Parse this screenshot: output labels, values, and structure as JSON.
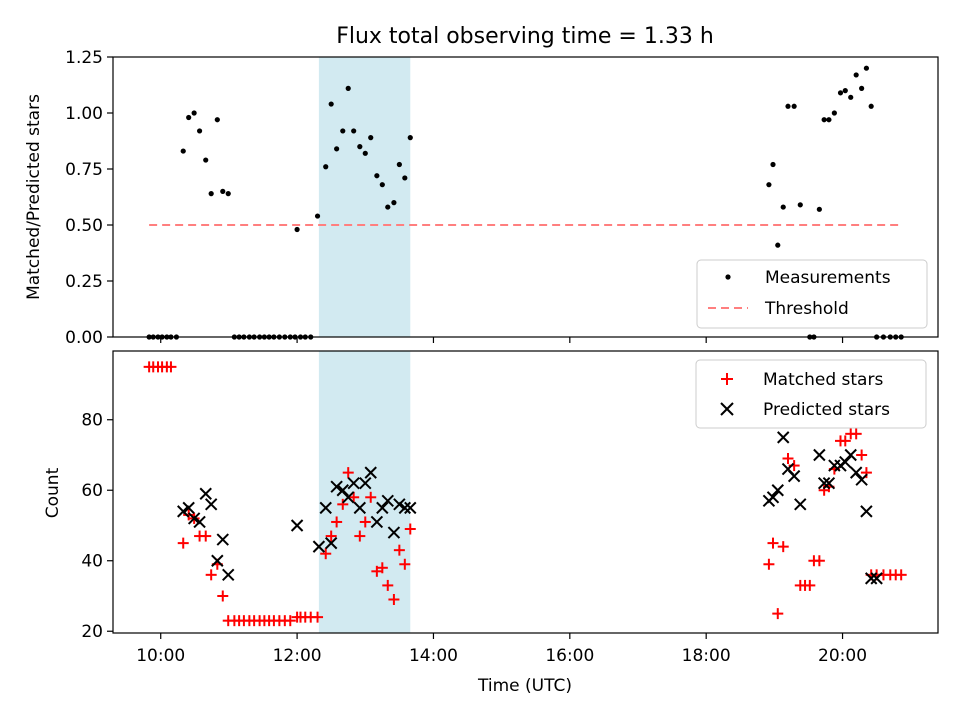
{
  "chart_data": {
    "title": "Flux total observing time = 1.33 h",
    "xlabel": "Time (UTC)",
    "x_unit": "hours UTC",
    "xlim": [
      9.3,
      21.4
    ],
    "x_ticks": [
      10,
      12,
      14,
      16,
      18,
      20
    ],
    "x_tick_labels": [
      "10:00",
      "12:00",
      "14:00",
      "16:00",
      "18:00",
      "20:00"
    ],
    "shaded_interval": {
      "x_start": 12.32,
      "x_end": 13.66,
      "color": "#add8e6"
    },
    "charts": [
      {
        "type": "scatter",
        "ylabel": "Matched/Predicted stars",
        "ylim": [
          0,
          1.25
        ],
        "y_ticks": [
          0,
          0.25,
          0.5,
          0.75,
          1.0,
          1.25
        ],
        "y_tick_labels": [
          "0.00",
          "0.25",
          "0.50",
          "0.75",
          "1.00",
          "1.25"
        ],
        "legend_position": "lower right",
        "series": [
          {
            "name": "Measurements",
            "marker": "dot",
            "color": "#000000",
            "x": [
              9.83,
              9.89,
              9.96,
              10.02,
              10.09,
              10.15,
              10.23,
              10.33,
              10.41,
              10.49,
              10.57,
              10.66,
              10.74,
              10.83,
              10.91,
              10.99,
              11.08,
              11.15,
              11.22,
              11.3,
              11.37,
              11.45,
              11.52,
              11.59,
              11.66,
              11.74,
              11.82,
              11.9,
              11.97,
              12.0,
              12.05,
              12.12,
              12.2,
              12.3,
              12.42,
              12.5,
              12.58,
              12.67,
              12.75,
              12.83,
              12.92,
              13.0,
              13.08,
              13.17,
              13.25,
              13.33,
              13.42,
              13.5,
              13.58,
              13.66,
              18.92,
              18.98,
              19.05,
              19.13,
              19.2,
              19.29,
              19.38,
              19.52,
              19.58,
              19.66,
              19.73,
              19.8,
              19.88,
              19.97,
              20.04,
              20.12,
              20.2,
              20.28,
              20.35,
              20.42,
              20.5,
              20.6,
              20.7,
              20.78,
              20.86
            ],
            "y": [
              0.0,
              0.0,
              0.0,
              0.0,
              0.0,
              0.0,
              0.0,
              0.83,
              0.98,
              1.0,
              0.92,
              0.79,
              0.64,
              0.97,
              0.65,
              0.64,
              0.0,
              0.0,
              0.0,
              0.0,
              0.0,
              0.0,
              0.0,
              0.0,
              0.0,
              0.0,
              0.0,
              0.0,
              0.0,
              0.48,
              0.0,
              0.0,
              0.0,
              0.54,
              0.76,
              1.04,
              0.84,
              0.92,
              1.11,
              0.92,
              0.85,
              0.82,
              0.89,
              0.72,
              0.68,
              0.58,
              0.6,
              0.77,
              0.71,
              0.89,
              0.68,
              0.77,
              0.41,
              0.58,
              1.03,
              1.03,
              0.59,
              0.0,
              0.0,
              0.57,
              0.97,
              0.97,
              1.0,
              1.09,
              1.1,
              1.07,
              1.17,
              1.11,
              1.2,
              1.03,
              0.0,
              0.0,
              0.0,
              0.0,
              0.0
            ]
          },
          {
            "name": "Threshold",
            "type": "line",
            "style": "dashed",
            "color": "#ff7f7f",
            "x": [
              9.83,
              20.86
            ],
            "y": [
              0.5,
              0.5
            ]
          }
        ]
      },
      {
        "type": "scatter",
        "ylabel": "Count",
        "ylim": [
          19.5,
          99.5
        ],
        "y_ticks": [
          20,
          40,
          60,
          80
        ],
        "y_tick_labels": [
          "20",
          "40",
          "60",
          "80"
        ],
        "legend_position": "upper right",
        "series": [
          {
            "name": "Matched stars",
            "marker": "plus",
            "color": "#ff0000",
            "x": [
              9.83,
              9.89,
              9.96,
              10.02,
              10.09,
              10.15,
              10.33,
              10.41,
              10.49,
              10.57,
              10.66,
              10.74,
              10.83,
              10.91,
              10.99,
              11.08,
              11.15,
              11.22,
              11.3,
              11.37,
              11.45,
              11.52,
              11.59,
              11.66,
              11.74,
              11.82,
              11.9,
              12.0,
              12.05,
              12.12,
              12.2,
              12.3,
              12.42,
              12.5,
              12.58,
              12.67,
              12.75,
              12.83,
              12.92,
              13.0,
              13.08,
              13.17,
              13.25,
              13.33,
              13.42,
              13.5,
              13.58,
              13.66,
              18.92,
              18.98,
              19.05,
              19.13,
              19.2,
              19.29,
              19.38,
              19.45,
              19.52,
              19.58,
              19.66,
              19.73,
              19.8,
              19.88,
              19.97,
              20.04,
              20.12,
              20.2,
              20.28,
              20.35,
              20.42,
              20.5,
              20.6,
              20.7,
              20.78,
              20.86
            ],
            "y": [
              95,
              95,
              95,
              95,
              95,
              95,
              45,
              53,
              52,
              47,
              47,
              36,
              39,
              30,
              23,
              23,
              23,
              23,
              23,
              23,
              23,
              23,
              23,
              23,
              23,
              23,
              23,
              24,
              24,
              24,
              24,
              24,
              42,
              47,
              51,
              56,
              65,
              58,
              47,
              51,
              58,
              37,
              38,
              33,
              29,
              43,
              39,
              49,
              39,
              45,
              25,
              44,
              69,
              67,
              33,
              33,
              33,
              40,
              40,
              60,
              61,
              66,
              74,
              74,
              76,
              76,
              70,
              65,
              36,
              36,
              36,
              36,
              36,
              36
            ],
            "clipped_at_top": 2
          },
          {
            "name": "Predicted stars",
            "marker": "x",
            "color": "#000000",
            "x": [
              10.33,
              10.41,
              10.49,
              10.57,
              10.66,
              10.74,
              10.83,
              10.91,
              10.99,
              12.0,
              12.32,
              12.42,
              12.5,
              12.58,
              12.67,
              12.75,
              12.83,
              12.92,
              13.0,
              13.08,
              13.17,
              13.25,
              13.33,
              13.42,
              13.5,
              13.58,
              13.66,
              18.92,
              18.98,
              19.05,
              19.13,
              19.2,
              19.29,
              19.38,
              19.66,
              19.73,
              19.8,
              19.88,
              19.97,
              20.04,
              20.12,
              20.2,
              20.28,
              20.35,
              20.42,
              20.5
            ],
            "y": [
              54,
              55,
              52,
              51,
              59,
              56,
              40,
              46,
              36,
              50,
              44,
              55,
              45,
              61,
              60,
              58,
              62,
              55,
              62,
              65,
              51,
              55,
              57,
              48,
              56,
              55,
              55,
              57,
              58,
              60,
              75,
              66,
              64,
              56,
              70,
              62,
              62,
              67,
              67,
              68,
              70,
              65,
              63,
              54,
              35,
              35
            ]
          }
        ]
      }
    ]
  }
}
